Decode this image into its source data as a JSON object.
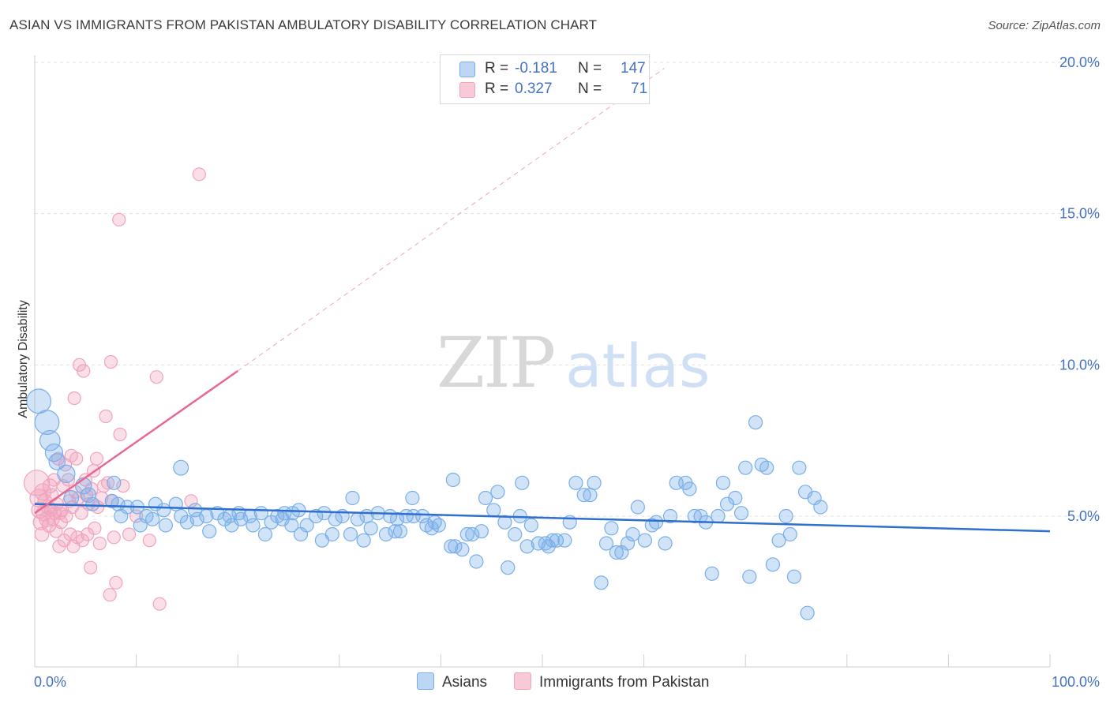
{
  "header": {
    "title": "ASIAN VS IMMIGRANTS FROM PAKISTAN AMBULATORY DISABILITY CORRELATION CHART",
    "source": "Source: ZipAtlas.com"
  },
  "watermark": {
    "zip": "ZIP",
    "atlas": "atlas"
  },
  "legend": {
    "rows": [
      {
        "r_label": "R =",
        "r_value": "-0.181",
        "n_label": "N =",
        "n_value": "147"
      },
      {
        "r_label": "R =",
        "r_value": "0.327",
        "n_label": "N =",
        "n_value": "71"
      }
    ]
  },
  "bottom_legend": {
    "items": [
      "Asians",
      "Immigrants from Pakistan"
    ]
  },
  "colors": {
    "asians": "#7aaee8",
    "pakistan": "#f0a3bd",
    "asians_line": "#2f6fcf",
    "pakistan_line": "#e8698f",
    "tick": "#4472c4"
  },
  "chart_data": {
    "type": "scatter",
    "title": "ASIAN VS IMMIGRANTS FROM PAKISTAN AMBULATORY DISABILITY CORRELATION CHART",
    "ylabel": "Ambulatory Disability",
    "xlabel": "",
    "xlim": [
      0,
      100
    ],
    "ylim": [
      0,
      21
    ],
    "x_ticks": [
      0,
      100
    ],
    "x_tick_labels": [
      "0.0%",
      "100.0%"
    ],
    "y_ticks": [
      5,
      10,
      15,
      20
    ],
    "y_tick_labels": [
      "5.0%",
      "10.0%",
      "15.0%",
      "20.0%"
    ],
    "grid": true,
    "legend_position": "top-center",
    "series": [
      {
        "name": "Asians",
        "R": -0.181,
        "N": 147,
        "trend": {
          "x": [
            0,
            100
          ],
          "y": [
            5.4,
            4.5
          ]
        },
        "points": [
          [
            0.4,
            8.8,
            1.8
          ],
          [
            1.2,
            8.1,
            1.8
          ],
          [
            1.5,
            7.5,
            1.5
          ],
          [
            1.9,
            7.1,
            1.3
          ],
          [
            2.2,
            6.8,
            1.2
          ],
          [
            3.1,
            6.4,
            1.3
          ],
          [
            4.8,
            6.0,
            1.2
          ],
          [
            3.6,
            5.6,
            1.1
          ],
          [
            5.3,
            5.7,
            1.1
          ],
          [
            5.7,
            5.4,
            1.0
          ],
          [
            7.6,
            5.5,
            1.0
          ],
          [
            8.2,
            5.4,
            1.0
          ],
          [
            7.8,
            6.1,
            1.0
          ],
          [
            8.5,
            5.0,
            1.0
          ],
          [
            9.1,
            5.3,
            1.0
          ],
          [
            10.1,
            5.3,
            1.0
          ],
          [
            10.4,
            4.7,
            1.0
          ],
          [
            11.0,
            5.0,
            1.0
          ],
          [
            11.6,
            4.9,
            1.0
          ],
          [
            11.9,
            5.4,
            1.0
          ],
          [
            12.7,
            5.2,
            1.0
          ],
          [
            12.9,
            4.7,
            1.0
          ],
          [
            13.9,
            5.4,
            1.0
          ],
          [
            14.4,
            5.0,
            1.0
          ],
          [
            15.0,
            4.8,
            1.0
          ],
          [
            14.4,
            6.6,
            1.1
          ],
          [
            16.0,
            4.9,
            1.0
          ],
          [
            15.8,
            5.2,
            1.0
          ],
          [
            16.9,
            5.0,
            1.0
          ],
          [
            17.2,
            4.5,
            1.0
          ],
          [
            18.0,
            5.1,
            1.0
          ],
          [
            18.7,
            4.9,
            1.0
          ],
          [
            19.2,
            5.0,
            1.0
          ],
          [
            19.4,
            4.7,
            1.0
          ],
          [
            20.1,
            5.1,
            1.0
          ],
          [
            20.3,
            4.9,
            1.0
          ],
          [
            21.2,
            5.0,
            1.0
          ],
          [
            21.5,
            4.7,
            1.0
          ],
          [
            22.3,
            5.1,
            1.0
          ],
          [
            22.7,
            4.4,
            1.0
          ],
          [
            23.3,
            4.8,
            1.0
          ],
          [
            23.9,
            5.0,
            1.0
          ],
          [
            24.4,
            4.9,
            1.0
          ],
          [
            24.6,
            5.1,
            1.0
          ],
          [
            25.3,
            4.7,
            1.0
          ],
          [
            25.4,
            5.1,
            1.0
          ],
          [
            26.0,
            5.2,
            1.0
          ],
          [
            26.2,
            4.4,
            1.0
          ],
          [
            26.8,
            4.7,
            1.0
          ],
          [
            27.7,
            5.0,
            1.0
          ],
          [
            28.3,
            4.2,
            1.0
          ],
          [
            28.5,
            5.1,
            1.0
          ],
          [
            29.3,
            4.4,
            1.0
          ],
          [
            29.6,
            4.9,
            1.0
          ],
          [
            30.3,
            5.0,
            1.0
          ],
          [
            31.1,
            4.4,
            1.0
          ],
          [
            31.3,
            5.6,
            1.0
          ],
          [
            31.8,
            4.9,
            1.0
          ],
          [
            32.4,
            4.2,
            1.0
          ],
          [
            32.7,
            5.0,
            1.0
          ],
          [
            33.1,
            4.6,
            1.0
          ],
          [
            33.8,
            5.1,
            1.0
          ],
          [
            34.6,
            4.4,
            1.0
          ],
          [
            35.0,
            5.0,
            1.0
          ],
          [
            35.5,
            4.5,
            1.0
          ],
          [
            35.7,
            4.9,
            1.0
          ],
          [
            36.0,
            4.5,
            1.0
          ],
          [
            36.6,
            5.0,
            1.0
          ],
          [
            37.2,
            5.6,
            1.0
          ],
          [
            37.3,
            5.0,
            1.0
          ],
          [
            38.2,
            5.0,
            1.0
          ],
          [
            38.6,
            4.7,
            1.0
          ],
          [
            39.1,
            4.6,
            1.0
          ],
          [
            39.4,
            4.8,
            1.0
          ],
          [
            39.8,
            4.7,
            1.0
          ],
          [
            41.0,
            4.0,
            1.0
          ],
          [
            41.2,
            6.2,
            1.0
          ],
          [
            41.4,
            4.0,
            1.0
          ],
          [
            42.1,
            3.9,
            1.0
          ],
          [
            42.6,
            4.4,
            1.0
          ],
          [
            43.1,
            4.4,
            1.0
          ],
          [
            43.5,
            3.5,
            1.0
          ],
          [
            44.0,
            4.5,
            1.0
          ],
          [
            44.4,
            5.6,
            1.0
          ],
          [
            45.2,
            5.2,
            1.0
          ],
          [
            45.6,
            5.8,
            1.0
          ],
          [
            46.3,
            4.8,
            1.0
          ],
          [
            46.6,
            3.3,
            1.0
          ],
          [
            47.3,
            4.4,
            1.0
          ],
          [
            47.8,
            5.0,
            1.0
          ],
          [
            48.0,
            6.1,
            1.0
          ],
          [
            48.5,
            4.0,
            1.0
          ],
          [
            48.9,
            4.7,
            1.0
          ],
          [
            49.6,
            4.1,
            1.0
          ],
          [
            50.3,
            4.1,
            1.0
          ],
          [
            50.6,
            4.0,
            1.0
          ],
          [
            51.0,
            4.2,
            1.0
          ],
          [
            51.4,
            4.2,
            1.0
          ],
          [
            52.2,
            4.2,
            1.0
          ],
          [
            52.7,
            4.8,
            1.0
          ],
          [
            53.3,
            6.1,
            1.0
          ],
          [
            54.1,
            5.7,
            1.0
          ],
          [
            54.7,
            5.7,
            1.0
          ],
          [
            55.1,
            6.1,
            1.0
          ],
          [
            55.8,
            2.8,
            1.0
          ],
          [
            56.3,
            4.1,
            1.0
          ],
          [
            56.8,
            4.6,
            1.0
          ],
          [
            57.3,
            3.8,
            1.0
          ],
          [
            57.8,
            3.8,
            1.0
          ],
          [
            58.4,
            4.1,
            1.0
          ],
          [
            58.9,
            4.4,
            1.0
          ],
          [
            59.4,
            5.3,
            1.0
          ],
          [
            60.1,
            4.2,
            1.0
          ],
          [
            60.8,
            4.7,
            1.0
          ],
          [
            61.2,
            4.8,
            1.0
          ],
          [
            62.1,
            4.1,
            1.0
          ],
          [
            62.6,
            5.0,
            1.0
          ],
          [
            63.2,
            6.1,
            1.0
          ],
          [
            64.1,
            6.1,
            1.0
          ],
          [
            64.5,
            5.9,
            1.0
          ],
          [
            65.0,
            5.0,
            1.0
          ],
          [
            65.6,
            5.0,
            1.0
          ],
          [
            66.1,
            4.8,
            1.0
          ],
          [
            66.7,
            3.1,
            1.0
          ],
          [
            67.3,
            5.0,
            1.0
          ],
          [
            67.8,
            6.1,
            1.0
          ],
          [
            68.2,
            5.4,
            1.0
          ],
          [
            69.0,
            5.6,
            1.0
          ],
          [
            69.6,
            5.1,
            1.0
          ],
          [
            70.0,
            6.6,
            1.0
          ],
          [
            70.4,
            3.0,
            1.0
          ],
          [
            71.0,
            8.1,
            1.0
          ],
          [
            71.6,
            6.7,
            1.0
          ],
          [
            72.1,
            6.6,
            1.0
          ],
          [
            72.7,
            3.4,
            1.0
          ],
          [
            73.3,
            4.2,
            1.0
          ],
          [
            74.0,
            5.0,
            1.0
          ],
          [
            74.4,
            4.4,
            1.0
          ],
          [
            74.8,
            3.0,
            1.0
          ],
          [
            75.3,
            6.6,
            1.0
          ],
          [
            75.9,
            5.8,
            1.0
          ],
          [
            76.1,
            1.8,
            1.0
          ],
          [
            76.8,
            5.6,
            1.0
          ],
          [
            77.4,
            5.3,
            1.0
          ]
        ]
      },
      {
        "name": "Immigrants from Pakistan",
        "R": 0.327,
        "N": 71,
        "trend": {
          "x": [
            0,
            20
          ],
          "y": [
            5.1,
            9.8
          ]
        },
        "trend_extended": {
          "x": [
            20,
            62
          ],
          "y": [
            9.8,
            19.8
          ]
        },
        "points": [
          [
            0.2,
            6.1,
            2.0
          ],
          [
            0.4,
            5.6,
            1.4
          ],
          [
            0.5,
            5.2,
            1.3
          ],
          [
            0.6,
            4.8,
            1.2
          ],
          [
            0.7,
            4.4,
            1.1
          ],
          [
            0.8,
            5.8,
            1.3
          ],
          [
            0.9,
            5.1,
            1.2
          ],
          [
            1.0,
            5.5,
            1.1
          ],
          [
            1.2,
            4.9,
            1.2
          ],
          [
            1.3,
            5.3,
            1.1
          ],
          [
            1.4,
            4.7,
            1.1
          ],
          [
            1.5,
            6.0,
            1.1
          ],
          [
            1.6,
            5.2,
            1.0
          ],
          [
            1.7,
            5.7,
            1.0
          ],
          [
            1.8,
            4.9,
            1.0
          ],
          [
            1.9,
            6.2,
            1.0
          ],
          [
            2.0,
            5.1,
            1.0
          ],
          [
            2.1,
            4.5,
            1.0
          ],
          [
            2.2,
            5.4,
            1.0
          ],
          [
            2.3,
            6.9,
            1.0
          ],
          [
            2.4,
            4.0,
            1.0
          ],
          [
            2.5,
            5.1,
            1.0
          ],
          [
            2.6,
            4.8,
            1.0
          ],
          [
            2.7,
            5.2,
            1.0
          ],
          [
            2.8,
            6.0,
            1.0
          ],
          [
            2.9,
            4.2,
            1.0
          ],
          [
            3.0,
            6.7,
            1.0
          ],
          [
            3.1,
            5.0,
            1.0
          ],
          [
            3.3,
            6.2,
            1.0
          ],
          [
            3.4,
            5.5,
            1.0
          ],
          [
            3.5,
            4.4,
            1.0
          ],
          [
            3.6,
            7.0,
            1.0
          ],
          [
            3.7,
            5.3,
            1.0
          ],
          [
            3.8,
            4.0,
            1.0
          ],
          [
            3.9,
            8.9,
            1.0
          ],
          [
            4.0,
            5.8,
            1.0
          ],
          [
            4.1,
            6.9,
            1.0
          ],
          [
            4.2,
            4.3,
            1.0
          ],
          [
            4.3,
            5.6,
            1.0
          ],
          [
            4.4,
            10.0,
            1.0
          ],
          [
            4.6,
            5.1,
            1.0
          ],
          [
            4.7,
            4.2,
            1.0
          ],
          [
            4.8,
            9.8,
            1.0
          ],
          [
            5.0,
            6.2,
            1.0
          ],
          [
            5.1,
            5.7,
            1.0
          ],
          [
            5.2,
            4.4,
            1.0
          ],
          [
            5.3,
            5.4,
            1.0
          ],
          [
            5.5,
            3.3,
            1.0
          ],
          [
            5.6,
            5.9,
            1.0
          ],
          [
            5.8,
            6.5,
            1.0
          ],
          [
            5.9,
            4.6,
            1.0
          ],
          [
            6.1,
            6.9,
            1.0
          ],
          [
            6.2,
            5.3,
            1.0
          ],
          [
            6.4,
            4.1,
            1.0
          ],
          [
            6.6,
            5.6,
            1.0
          ],
          [
            6.8,
            6.0,
            1.0
          ],
          [
            7.0,
            8.3,
            1.0
          ],
          [
            7.2,
            6.1,
            1.0
          ],
          [
            7.4,
            2.4,
            1.0
          ],
          [
            7.5,
            10.1,
            1.0
          ],
          [
            7.6,
            5.5,
            1.0
          ],
          [
            7.8,
            4.3,
            1.0
          ],
          [
            8.0,
            2.8,
            1.0
          ],
          [
            8.3,
            14.8,
            1.0
          ],
          [
            8.4,
            7.7,
            1.0
          ],
          [
            8.7,
            6.0,
            1.0
          ],
          [
            9.3,
            4.4,
            1.0
          ],
          [
            10.0,
            5.0,
            1.0
          ],
          [
            11.3,
            4.2,
            1.0
          ],
          [
            12.0,
            9.6,
            1.0
          ],
          [
            12.3,
            2.1,
            1.0
          ],
          [
            15.4,
            5.5,
            1.0
          ],
          [
            16.2,
            16.3,
            1.0
          ]
        ]
      }
    ]
  }
}
